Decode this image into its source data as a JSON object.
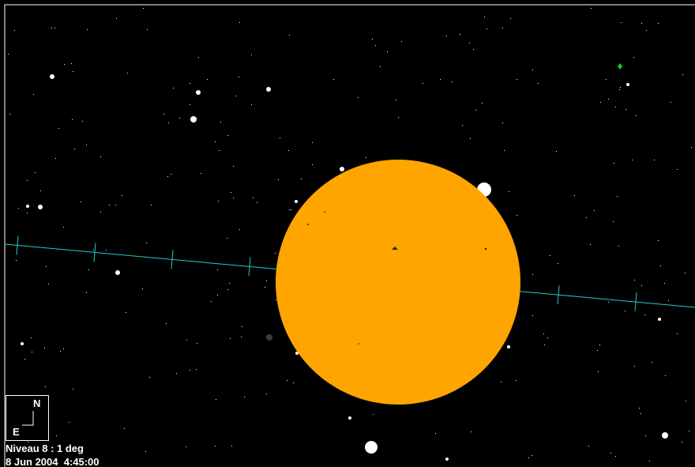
{
  "compass": {
    "north": "N",
    "east": "E"
  },
  "status": {
    "level": "Niveau 8 : 1 deg",
    "datetime": "8 Jun 2004  4:45:00"
  }
}
